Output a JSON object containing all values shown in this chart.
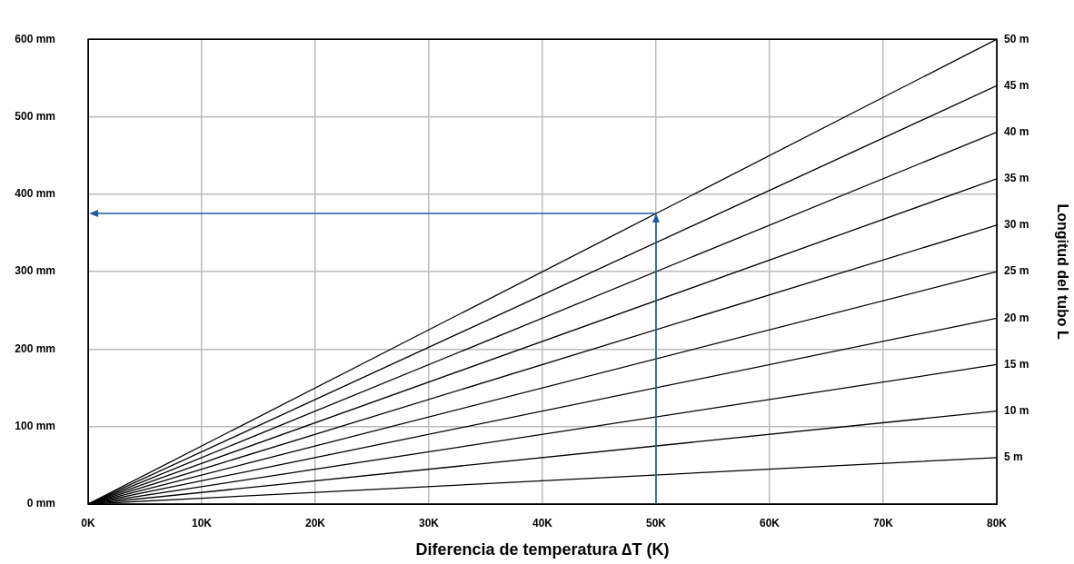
{
  "chart_data": {
    "type": "line",
    "xlabel": "Diferencia de temperatura ∆T (K)",
    "y2label": "Longitud del tubo L",
    "xlim": [
      0,
      80
    ],
    "xticks": [
      {
        "value": 0,
        "label": "0K"
      },
      {
        "value": 10,
        "label": "10K"
      },
      {
        "value": 20,
        "label": "20K"
      },
      {
        "value": 30,
        "label": "30K"
      },
      {
        "value": 40,
        "label": "40K"
      },
      {
        "value": 50,
        "label": "50K"
      },
      {
        "value": 60,
        "label": "60K"
      },
      {
        "value": 70,
        "label": "70K"
      },
      {
        "value": 80,
        "label": "80K"
      }
    ],
    "ylim": [
      0,
      600
    ],
    "yticks": [
      {
        "value": 0,
        "label": "0 mm"
      },
      {
        "value": 100,
        "label": "100 mm"
      },
      {
        "value": 200,
        "label": "200 mm"
      },
      {
        "value": 300,
        "label": "300 mm"
      },
      {
        "value": 400,
        "label": "400 mm"
      },
      {
        "value": 500,
        "label": "500 mm"
      },
      {
        "value": 600,
        "label": "600 mm"
      }
    ],
    "grid": true,
    "x": [
      0,
      80
    ],
    "series": [
      {
        "name": "5 m",
        "color": "#000000",
        "values": [
          0,
          60
        ]
      },
      {
        "name": "10 m",
        "color": "#000000",
        "values": [
          0,
          120
        ]
      },
      {
        "name": "15 m",
        "color": "#000000",
        "values": [
          0,
          180
        ]
      },
      {
        "name": "20 m",
        "color": "#000000",
        "values": [
          0,
          240
        ]
      },
      {
        "name": "25 m",
        "color": "#000000",
        "values": [
          0,
          300
        ]
      },
      {
        "name": "30 m",
        "color": "#000000",
        "values": [
          0,
          360
        ]
      },
      {
        "name": "35 m",
        "color": "#000000",
        "values": [
          0,
          420
        ]
      },
      {
        "name": "40 m",
        "color": "#000000",
        "values": [
          0,
          480
        ]
      },
      {
        "name": "45 m",
        "color": "#000000",
        "values": [
          0,
          540
        ]
      },
      {
        "name": "50 m",
        "color": "#000000",
        "values": [
          0,
          600
        ]
      }
    ]
  }
}
